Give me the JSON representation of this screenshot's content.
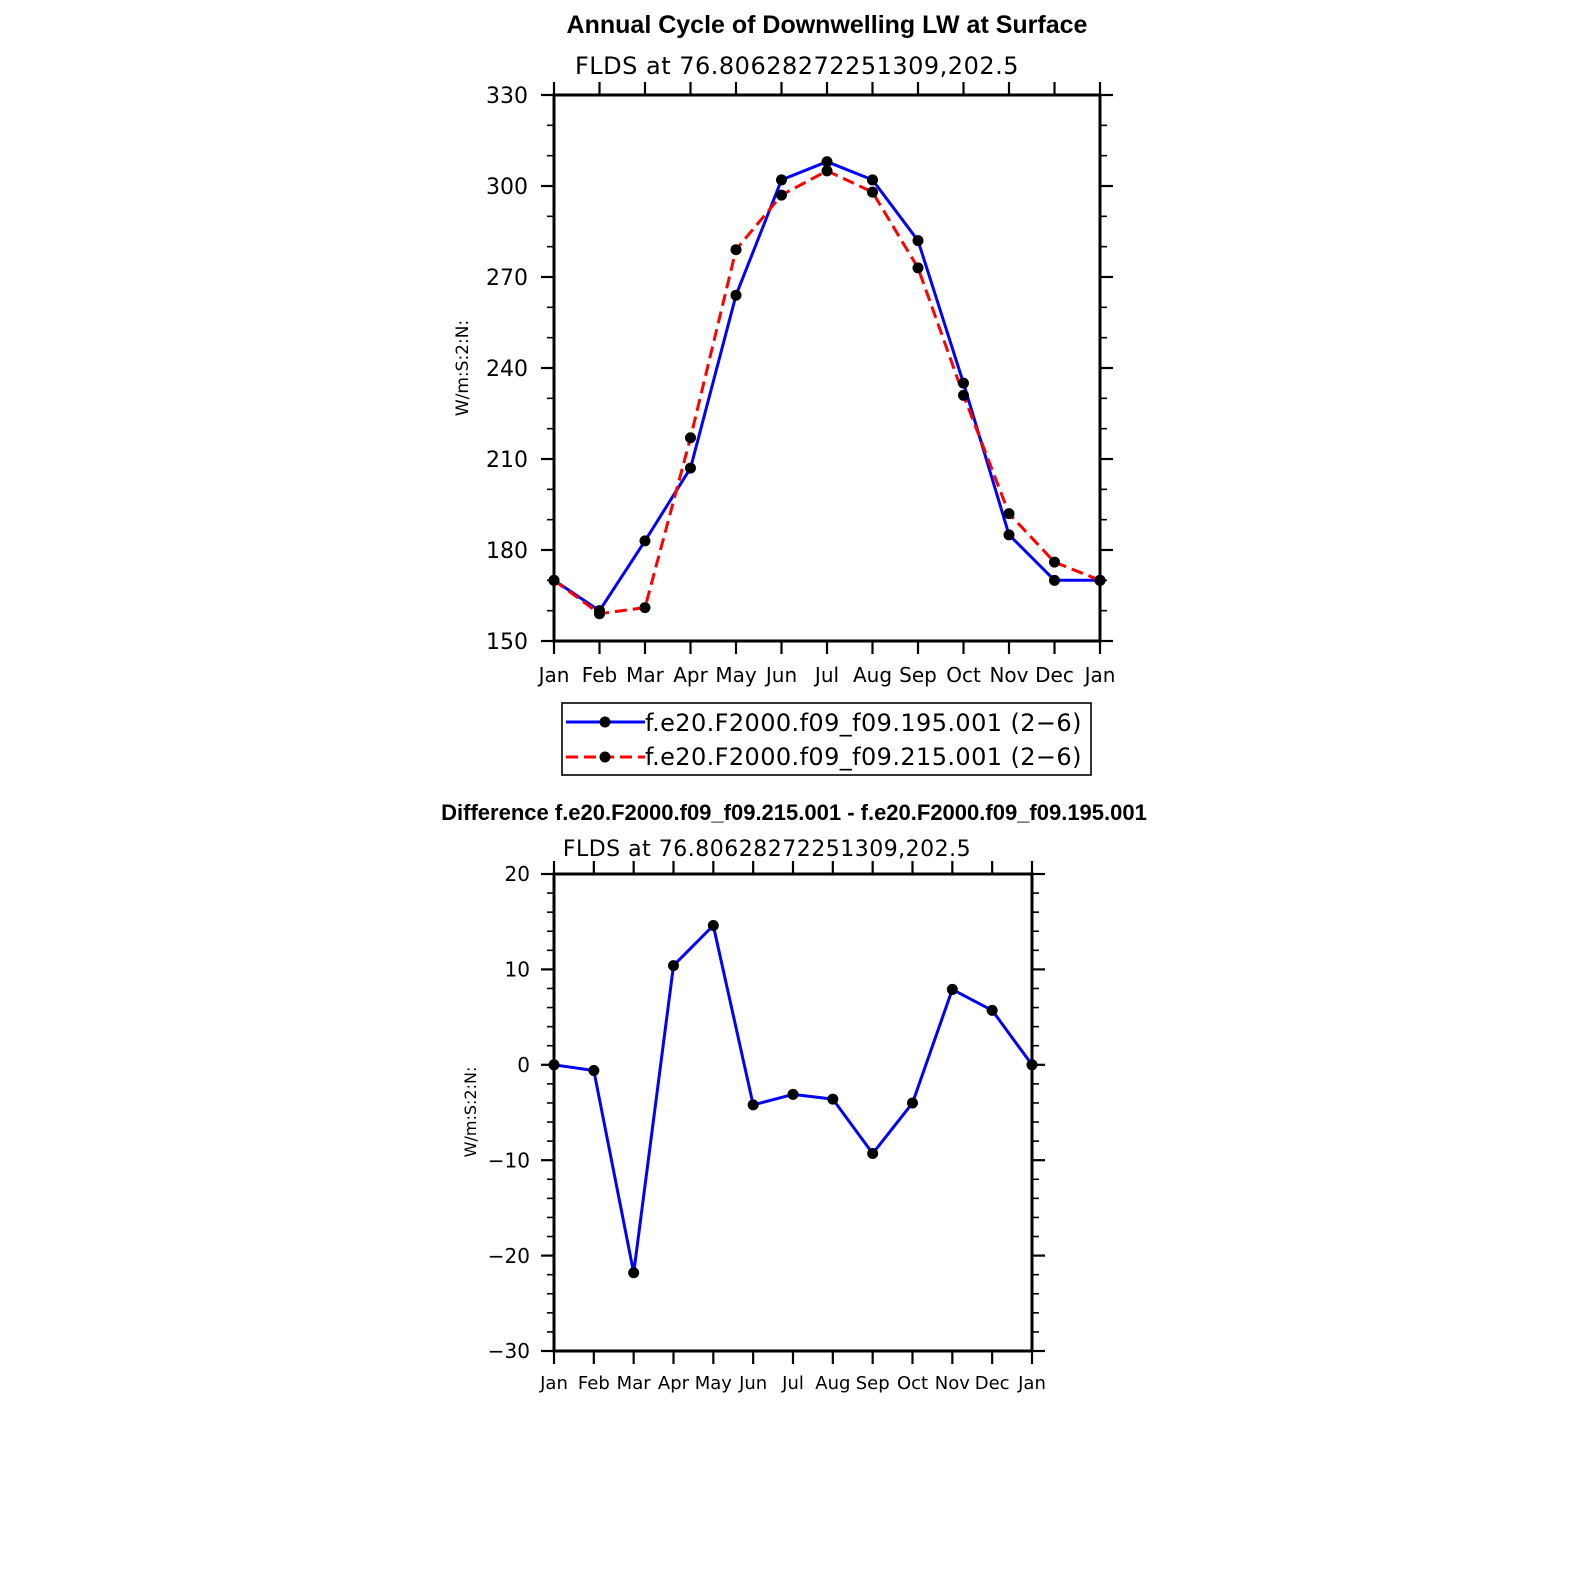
{
  "chart_data": [
    {
      "type": "line",
      "title": "Annual Cycle of Downwelling LW at Surface",
      "subtitle": "FLDS at 76.80628272251309,202.5",
      "ylabel": "W/m:S:2:N:",
      "xlabel": "",
      "ylim": [
        150,
        330
      ],
      "yticks": [
        "150",
        "180",
        "210",
        "240",
        "270",
        "300",
        "330"
      ],
      "categories": [
        "Jan",
        "Feb",
        "Mar",
        "Apr",
        "May",
        "Jun",
        "Jul",
        "Aug",
        "Sep",
        "Oct",
        "Nov",
        "Dec",
        "Jan"
      ],
      "legend_position": "bottom",
      "series": [
        {
          "name": "f.e20.F2000.f09_f09.195.001 (2−6)",
          "color": "#0000ff",
          "style": "solid",
          "values": [
            170,
            160,
            183,
            207,
            264,
            302,
            308,
            302,
            282,
            235,
            185,
            170,
            170
          ]
        },
        {
          "name": "f.e20.F2000.f09_f09.215.001 (2−6)",
          "color": "#ff0000",
          "style": "dashed",
          "values": [
            170,
            159,
            161,
            217,
            279,
            297,
            305,
            298,
            273,
            231,
            192,
            176,
            170
          ]
        }
      ]
    },
    {
      "type": "line",
      "title": "Difference f.e20.F2000.f09_f09.215.001 - f.e20.F2000.f09_f09.195.001",
      "subtitle": "FLDS at 76.80628272251309,202.5",
      "ylabel": "W/m:S:2:N:",
      "xlabel": "",
      "ylim": [
        -30,
        20
      ],
      "yticks": [
        "−30",
        "−20",
        "−10",
        "0",
        "10",
        "20"
      ],
      "categories": [
        "Jan",
        "Feb",
        "Mar",
        "Apr",
        "May",
        "Jun",
        "Jul",
        "Aug",
        "Sep",
        "Oct",
        "Nov",
        "Dec",
        "Jan"
      ],
      "series": [
        {
          "name": "difference",
          "color": "#0000ff",
          "style": "solid",
          "values": [
            0,
            -0.6,
            -21.8,
            10.4,
            14.6,
            -4.2,
            -3.1,
            -3.6,
            -9.3,
            -4.0,
            7.9,
            5.7,
            0
          ]
        }
      ]
    }
  ]
}
